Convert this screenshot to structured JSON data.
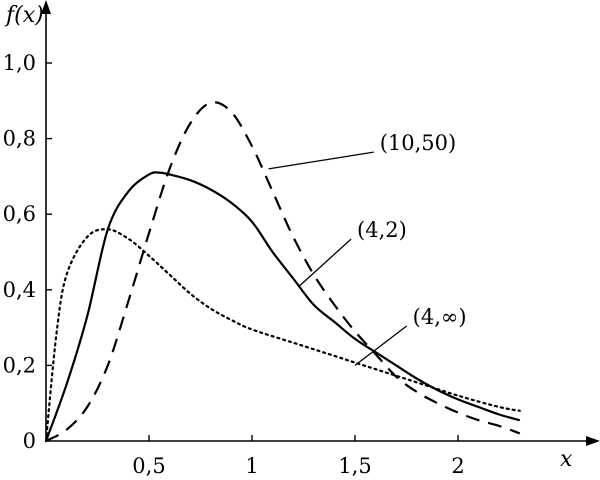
{
  "chart_data": {
    "type": "line",
    "title": "",
    "xlabel": "x",
    "ylabel": "f(x)",
    "xlim": [
      0,
      2.55
    ],
    "ylim": [
      0,
      1.05
    ],
    "grid": false,
    "legend": "none",
    "x_ticks": [
      {
        "value": 0.5,
        "label": "0,5"
      },
      {
        "value": 1.0,
        "label": "1"
      },
      {
        "value": 1.5,
        "label": "1,5"
      },
      {
        "value": 2.0,
        "label": "2"
      }
    ],
    "y_ticks": [
      {
        "value": 0,
        "label": "0"
      },
      {
        "value": 0.2,
        "label": "0,2"
      },
      {
        "value": 0.4,
        "label": "0,4"
      },
      {
        "value": 0.6,
        "label": "0,6"
      },
      {
        "value": 0.8,
        "label": "0,8"
      },
      {
        "value": 1.0,
        "label": "1,0"
      }
    ],
    "series": [
      {
        "name": "(10,50)",
        "style": "dashed",
        "label_at": {
          "x": 1.62,
          "y": 0.78
        },
        "leader_from": {
          "x": 1.08,
          "y": 0.72
        },
        "points": [
          [
            0,
            0
          ],
          [
            0.1,
            0.03
          ],
          [
            0.2,
            0.09
          ],
          [
            0.3,
            0.2
          ],
          [
            0.4,
            0.37
          ],
          [
            0.5,
            0.55
          ],
          [
            0.6,
            0.72
          ],
          [
            0.7,
            0.84
          ],
          [
            0.8,
            0.895
          ],
          [
            0.9,
            0.87
          ],
          [
            1.0,
            0.78
          ],
          [
            1.1,
            0.66
          ],
          [
            1.2,
            0.54
          ],
          [
            1.3,
            0.44
          ],
          [
            1.4,
            0.36
          ],
          [
            1.5,
            0.29
          ],
          [
            1.6,
            0.23
          ],
          [
            1.7,
            0.17
          ],
          [
            1.8,
            0.13
          ],
          [
            1.9,
            0.1
          ],
          [
            2.0,
            0.075
          ],
          [
            2.1,
            0.055
          ],
          [
            2.2,
            0.04
          ],
          [
            2.3,
            0.02
          ]
        ]
      },
      {
        "name": "(4,2)",
        "style": "solid",
        "label_at": {
          "x": 1.51,
          "y": 0.55
        },
        "leader_from": {
          "x": 1.23,
          "y": 0.41
        },
        "points": [
          [
            0,
            0
          ],
          [
            0.1,
            0.15
          ],
          [
            0.2,
            0.33
          ],
          [
            0.3,
            0.56
          ],
          [
            0.4,
            0.66
          ],
          [
            0.5,
            0.705
          ],
          [
            0.55,
            0.71
          ],
          [
            0.6,
            0.705
          ],
          [
            0.7,
            0.69
          ],
          [
            0.8,
            0.665
          ],
          [
            0.9,
            0.63
          ],
          [
            1.0,
            0.58
          ],
          [
            1.1,
            0.5
          ],
          [
            1.2,
            0.43
          ],
          [
            1.3,
            0.36
          ],
          [
            1.4,
            0.315
          ],
          [
            1.5,
            0.27
          ],
          [
            1.6,
            0.235
          ],
          [
            1.7,
            0.2
          ],
          [
            1.8,
            0.165
          ],
          [
            1.9,
            0.135
          ],
          [
            2.0,
            0.11
          ],
          [
            2.1,
            0.09
          ],
          [
            2.2,
            0.07
          ],
          [
            2.3,
            0.055
          ]
        ]
      },
      {
        "name": "(4,∞)",
        "style": "dotted",
        "label_at": {
          "x": 1.78,
          "y": 0.32
        },
        "leader_from": {
          "x": 1.5,
          "y": 0.2
        },
        "points": [
          [
            0,
            0
          ],
          [
            0.05,
            0.28
          ],
          [
            0.1,
            0.44
          ],
          [
            0.2,
            0.54
          ],
          [
            0.3,
            0.56
          ],
          [
            0.4,
            0.535
          ],
          [
            0.5,
            0.49
          ],
          [
            0.6,
            0.44
          ],
          [
            0.7,
            0.39
          ],
          [
            0.8,
            0.35
          ],
          [
            0.9,
            0.32
          ],
          [
            1.0,
            0.295
          ],
          [
            1.2,
            0.26
          ],
          [
            1.4,
            0.225
          ],
          [
            1.6,
            0.19
          ],
          [
            1.8,
            0.155
          ],
          [
            2.0,
            0.12
          ],
          [
            2.2,
            0.09
          ],
          [
            2.3,
            0.08
          ]
        ]
      }
    ]
  }
}
